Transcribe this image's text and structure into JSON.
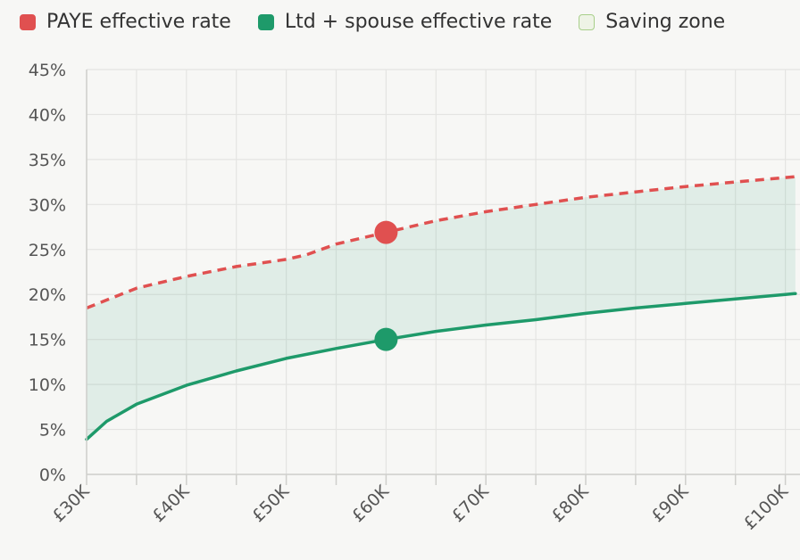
{
  "legend": [
    {
      "label": "PAYE effective rate",
      "color": "#e05050",
      "fill": "#e05050",
      "border": "#e05050"
    },
    {
      "label": "Ltd + spouse effective rate",
      "color": "#1e9a6a",
      "fill": "#1e9a6a",
      "border": "#1e9a6a"
    },
    {
      "label": "Saving zone",
      "color": "#a8cf8a",
      "fill": "#eef3e6",
      "border": "#a8cf8a"
    }
  ],
  "chart_data": {
    "type": "line",
    "xlim": [
      30000,
      101000
    ],
    "ylim": [
      0,
      45
    ],
    "x_ticks": [
      30000,
      35000,
      40000,
      45000,
      50000,
      55000,
      60000,
      65000,
      70000,
      75000,
      80000,
      85000,
      90000,
      95000,
      100000
    ],
    "x_tick_labels": [
      "£30K",
      "£40K",
      "£50K",
      "£60K",
      "£70K",
      "£80K",
      "£90K",
      "£100K"
    ],
    "x_tick_label_values": [
      30000,
      40000,
      50000,
      60000,
      70000,
      80000,
      90000,
      100000
    ],
    "y_ticks": [
      0,
      5,
      10,
      15,
      20,
      25,
      30,
      35,
      40,
      45
    ],
    "y_tick_labels": [
      "0%",
      "5%",
      "10%",
      "15%",
      "20%",
      "25%",
      "30%",
      "35%",
      "40%",
      "45%"
    ],
    "grid": true,
    "legend_position": "top-left",
    "series": [
      {
        "name": "PAYE effective rate",
        "color": "#e05050",
        "style": "dashed",
        "x": [
          30000,
          35000,
          40000,
          45000,
          50000,
          52000,
          55000,
          60000,
          65000,
          70000,
          75000,
          80000,
          85000,
          90000,
          95000,
          100000,
          101000
        ],
        "values": [
          18.5,
          20.7,
          22.0,
          23.1,
          23.9,
          24.4,
          25.6,
          26.9,
          28.2,
          29.2,
          30.0,
          30.8,
          31.4,
          32.0,
          32.5,
          33.0,
          33.1
        ]
      },
      {
        "name": "Ltd + spouse effective rate",
        "color": "#1e9a6a",
        "style": "solid",
        "x": [
          30000,
          32000,
          35000,
          40000,
          45000,
          50000,
          55000,
          60000,
          65000,
          70000,
          75000,
          80000,
          85000,
          90000,
          95000,
          100000,
          101000
        ],
        "values": [
          3.9,
          5.9,
          7.8,
          9.9,
          11.5,
          12.9,
          14.0,
          15.0,
          15.9,
          16.6,
          17.2,
          17.9,
          18.5,
          19.0,
          19.5,
          20.0,
          20.1
        ]
      }
    ],
    "highlight_points": [
      {
        "series": "PAYE effective rate",
        "x": 60000,
        "y": 26.9,
        "color": "#e05050"
      },
      {
        "series": "Ltd + spouse effective rate",
        "x": 60000,
        "y": 15.0,
        "color": "#1e9a6a"
      }
    ],
    "saving_zone_color": "#1e9a6a"
  }
}
